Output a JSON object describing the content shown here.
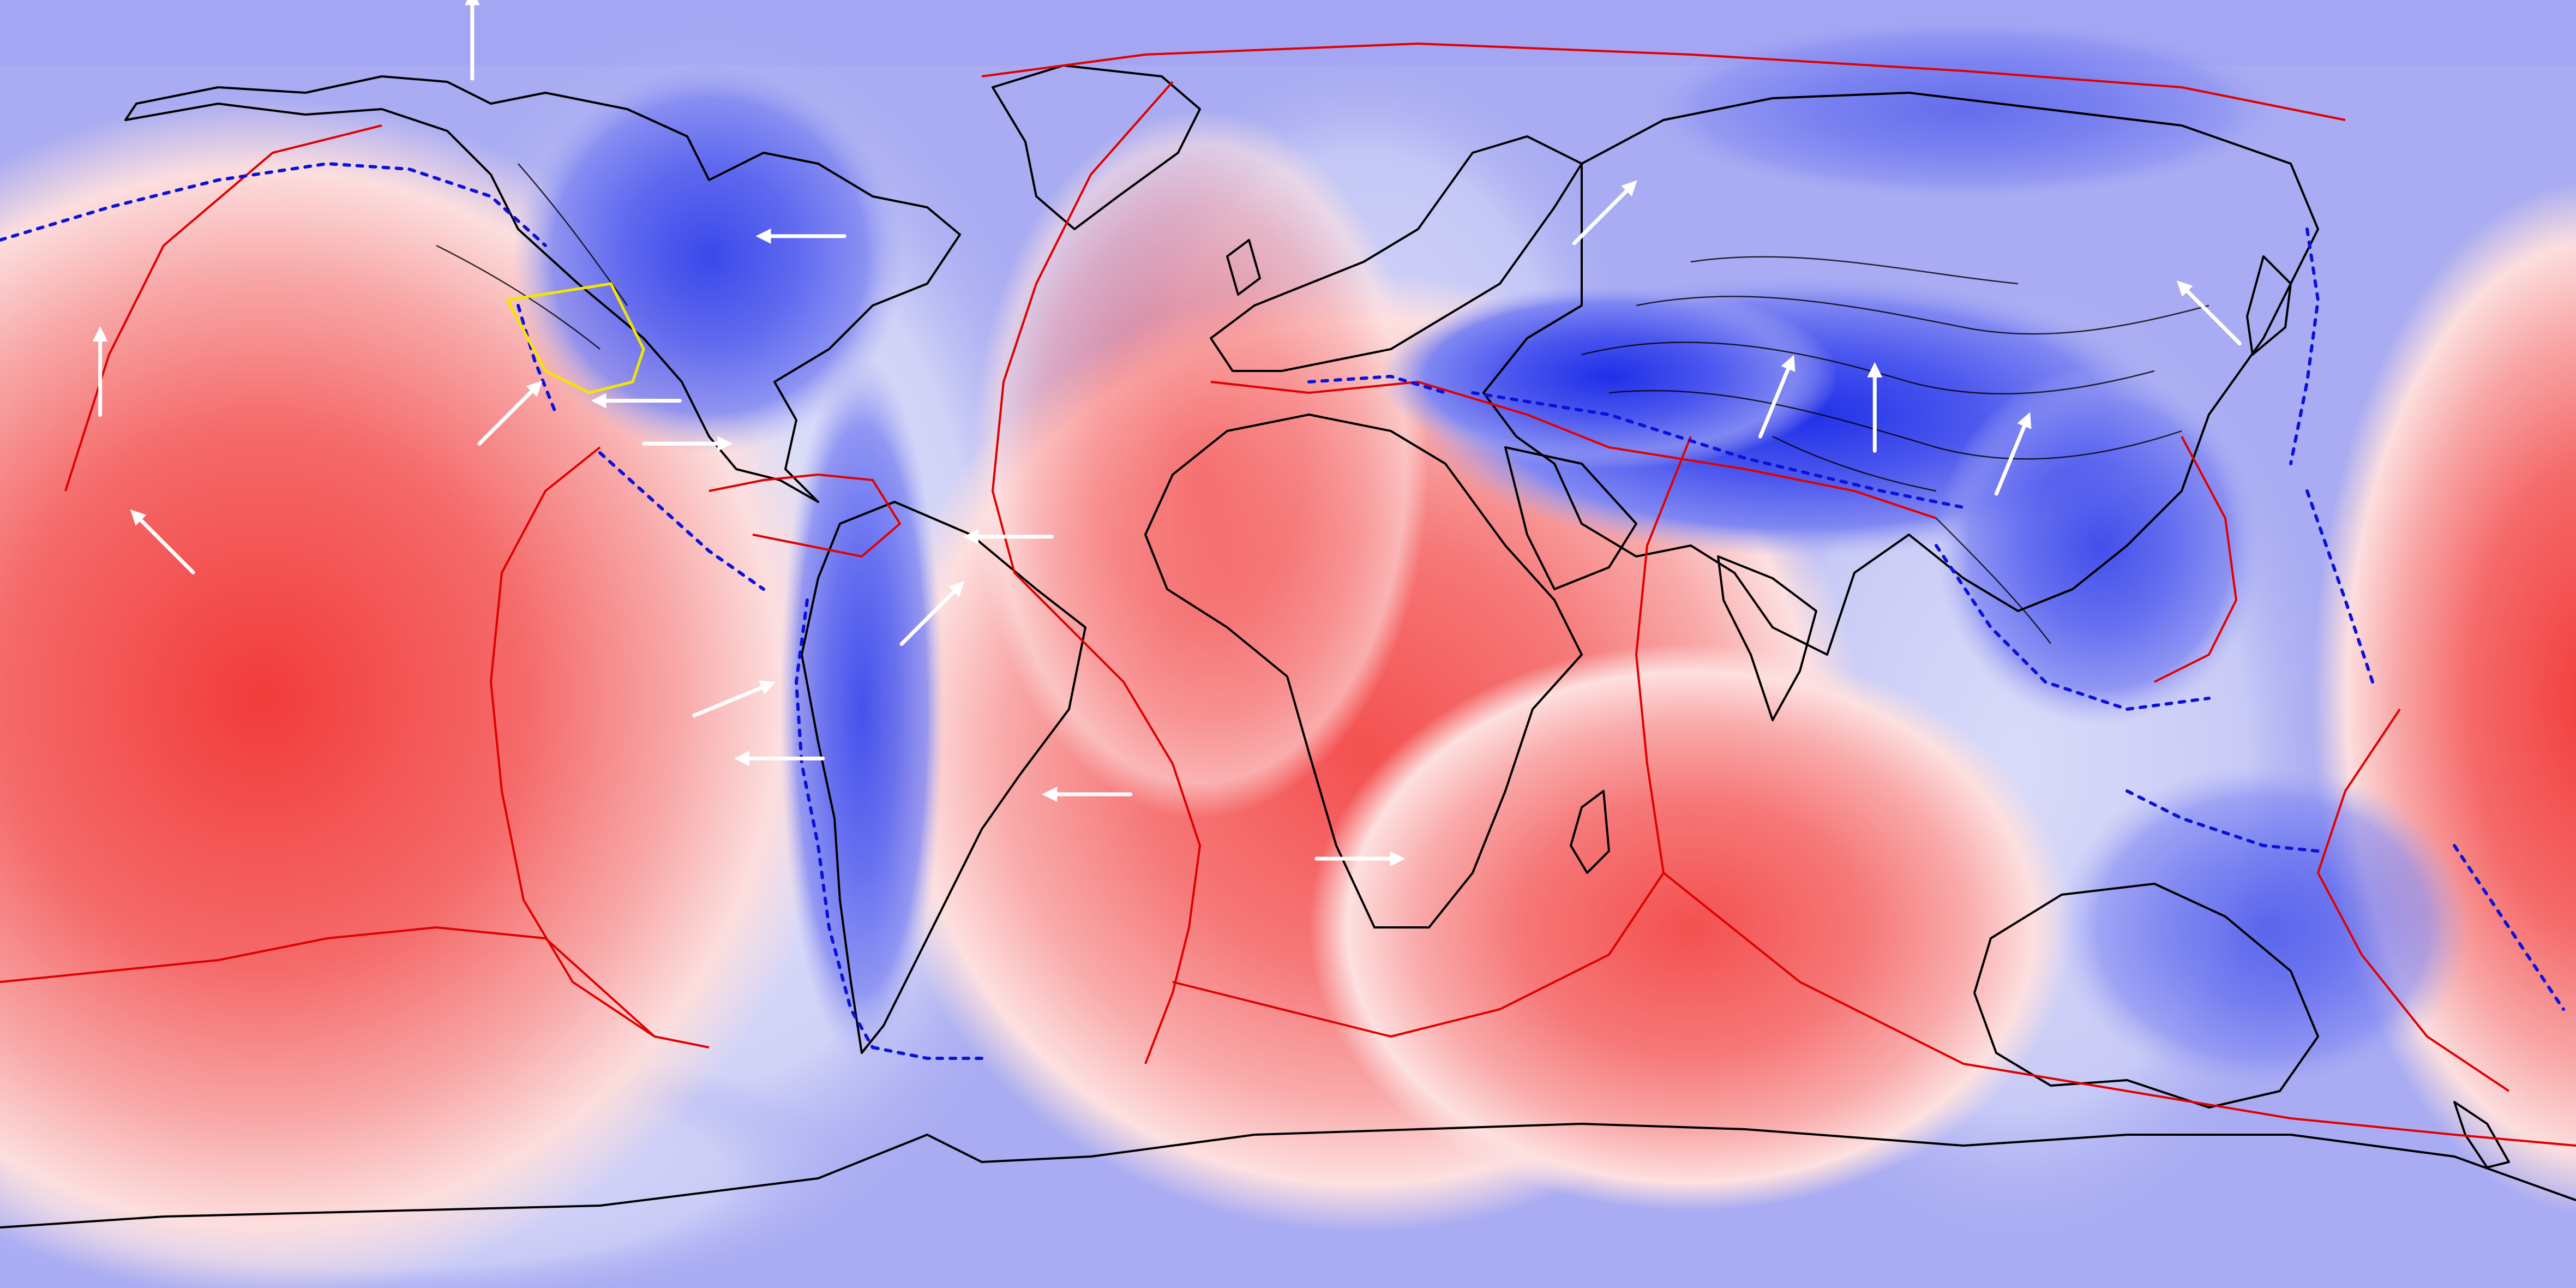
{
  "map": {
    "projection": "equirectangular",
    "field": {
      "palette": {
        "high": "#f23b3b",
        "mid": "#ffffff",
        "low": "#1f2fe8",
        "background": "#a9acf2"
      },
      "highs": [
        "central-pacific",
        "south-atlantic",
        "southwest-indian-ocean"
      ],
      "lows": [
        "tibetan-plateau-himalaya",
        "andes",
        "north-america"
      ]
    },
    "layers": {
      "coastlines": "#000000",
      "plate_boundaries": "#e00000",
      "subduction_zones": "#0a12d8",
      "microplate_boundary": "#f2e600",
      "velocity_vectors": "#ffffff",
      "deformation_lines": "#000000"
    },
    "vectors": [
      {
        "lon": -114,
        "lat": 79,
        "dir": "N"
      },
      {
        "lon": -62,
        "lat": 57,
        "dir": "W"
      },
      {
        "lon": 40,
        "lat": 56,
        "dir": "NE"
      },
      {
        "lon": 133,
        "lat": 42,
        "dir": "NW"
      },
      {
        "lon": 82,
        "lat": 27,
        "dir": "N"
      },
      {
        "lon": 66,
        "lat": 29,
        "dir": "NNE"
      },
      {
        "lon": 99,
        "lat": 21,
        "dir": "NNE"
      },
      {
        "lon": -166,
        "lat": 32,
        "dir": "N"
      },
      {
        "lon": -153,
        "lat": 10,
        "dir": "NW"
      },
      {
        "lon": -113,
        "lat": 28,
        "dir": "NE"
      },
      {
        "lon": -90,
        "lat": 28,
        "dir": "E"
      },
      {
        "lon": -83,
        "lat": -10,
        "dir": "ENE"
      },
      {
        "lon": -85,
        "lat": 34,
        "dir": "W"
      },
      {
        "lon": -65,
        "lat": -16,
        "dir": "W"
      },
      {
        "lon": -54,
        "lat": 0,
        "dir": "NE"
      },
      {
        "lon": -33,
        "lat": 15,
        "dir": "W"
      },
      {
        "lon": -22,
        "lat": -21,
        "dir": "W"
      },
      {
        "lon": 4,
        "lat": -30,
        "dir": "E"
      }
    ]
  }
}
